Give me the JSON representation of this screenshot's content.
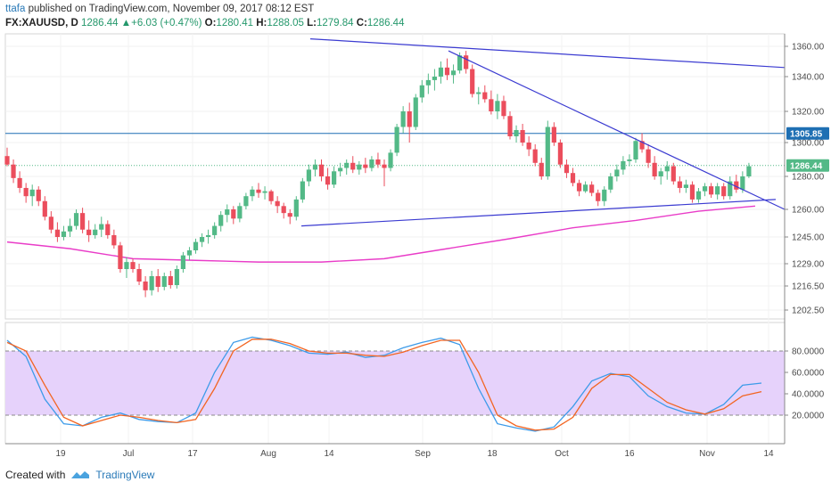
{
  "header": {
    "username": "ttafa",
    "published_text": "published on TradingView.com, November 09, 2017 08:12 EST"
  },
  "ohlc": {
    "symbol": "FX:XAUUSD, D",
    "last": "1286.44",
    "change": "+6.03 (+0.47%)",
    "open_label": "O:",
    "open": "1280.41",
    "high_label": "H:",
    "high": "1288.05",
    "low_label": "L:",
    "low": "1279.84",
    "close_label": "C:",
    "close": "1286.44"
  },
  "footer": {
    "created_with": "Created with",
    "brand": "TradingView"
  },
  "colors": {
    "up": "#53b987",
    "down": "#eb4d5c",
    "trendline": "#3b3bd1",
    "hline": "#1e6fb3",
    "ma": "#e93cc8",
    "stoch_k": "#3d9be9",
    "stoch_d": "#f26522",
    "stoch_band": "#e6d2fb"
  },
  "chart_data": [
    {
      "type": "candlestick",
      "symbol": "FX:XAUUSD",
      "timeframe": "D",
      "x_tick_labels": [
        "19",
        "Jul",
        "17",
        "Aug",
        "14",
        "Sep",
        "18",
        "Oct",
        "16",
        "Nov",
        "14"
      ],
      "y_tick_labels": [
        "1360.00",
        "1340.00",
        "1320.00",
        "1300.00",
        "1280.00",
        "1260.00",
        "1245.00",
        "1229.00",
        "1216.50",
        "1202.50"
      ],
      "price_tags": [
        {
          "label": "1305.85",
          "value": 1305.85,
          "color": "#1e6fb3"
        },
        {
          "label": "1286.44",
          "value": 1286.44,
          "color": "#53b987"
        }
      ],
      "horizontal_lines": [
        1305.85
      ],
      "trendlines": [
        {
          "from": [
            0,
            1366
          ],
          "to": [
            120,
            1346
          ]
        },
        {
          "from": [
            74,
            1357
          ],
          "to": [
            122,
            1260
          ]
        },
        {
          "from": [
            48,
            1251
          ],
          "to": [
            121,
            1266
          ]
        }
      ],
      "moving_average": [
        [
          0,
          1242
        ],
        [
          10,
          1238
        ],
        [
          20,
          1232
        ],
        [
          30,
          1231
        ],
        [
          40,
          1230
        ],
        [
          50,
          1230
        ],
        [
          60,
          1232
        ],
        [
          70,
          1238
        ],
        [
          80,
          1244
        ],
        [
          90,
          1250
        ],
        [
          100,
          1254
        ],
        [
          110,
          1259
        ],
        [
          119,
          1262
        ]
      ],
      "ohlc": [
        [
          1292,
          1297,
          1286,
          1287
        ],
        [
          1287,
          1290,
          1276,
          1279
        ],
        [
          1279,
          1283,
          1270,
          1273
        ],
        [
          1273,
          1276,
          1264,
          1268
        ],
        [
          1268,
          1275,
          1262,
          1272
        ],
        [
          1272,
          1274,
          1262,
          1265
        ],
        [
          1265,
          1268,
          1254,
          1256
        ],
        [
          1256,
          1259,
          1247,
          1249
        ],
        [
          1249,
          1253,
          1242,
          1245
        ],
        [
          1245,
          1251,
          1243,
          1248
        ],
        [
          1248,
          1255,
          1245,
          1251
        ],
        [
          1251,
          1260,
          1249,
          1258
        ],
        [
          1258,
          1261,
          1247,
          1249
        ],
        [
          1249,
          1254,
          1242,
          1246
        ],
        [
          1246,
          1252,
          1244,
          1249
        ],
        [
          1249,
          1256,
          1245,
          1252
        ],
        [
          1252,
          1254,
          1244,
          1246
        ],
        [
          1246,
          1249,
          1238,
          1240
        ],
        [
          1240,
          1242,
          1224,
          1226
        ],
        [
          1226,
          1233,
          1221,
          1230
        ],
        [
          1230,
          1232,
          1224,
          1226
        ],
        [
          1226,
          1229,
          1217,
          1219
        ],
        [
          1219,
          1222,
          1210,
          1214
        ],
        [
          1214,
          1225,
          1211,
          1222
        ],
        [
          1222,
          1226,
          1213,
          1216
        ],
        [
          1216,
          1224,
          1214,
          1222
        ],
        [
          1222,
          1225,
          1215,
          1217
        ],
        [
          1217,
          1228,
          1215,
          1226
        ],
        [
          1226,
          1236,
          1224,
          1234
        ],
        [
          1234,
          1239,
          1231,
          1237
        ],
        [
          1237,
          1244,
          1235,
          1242
        ],
        [
          1242,
          1247,
          1239,
          1245
        ],
        [
          1245,
          1249,
          1241,
          1246
        ],
        [
          1246,
          1253,
          1244,
          1251
        ],
        [
          1251,
          1259,
          1248,
          1257
        ],
        [
          1257,
          1263,
          1253,
          1260
        ],
        [
          1260,
          1262,
          1252,
          1255
        ],
        [
          1255,
          1264,
          1253,
          1262
        ],
        [
          1262,
          1270,
          1260,
          1268
        ],
        [
          1268,
          1274,
          1265,
          1272
        ],
        [
          1272,
          1276,
          1267,
          1270
        ],
        [
          1270,
          1274,
          1266,
          1271
        ],
        [
          1271,
          1272,
          1263,
          1265
        ],
        [
          1265,
          1268,
          1258,
          1262
        ],
        [
          1262,
          1264,
          1255,
          1258
        ],
        [
          1258,
          1260,
          1252,
          1256
        ],
        [
          1256,
          1268,
          1254,
          1266
        ],
        [
          1266,
          1279,
          1264,
          1277
        ],
        [
          1277,
          1287,
          1274,
          1284
        ],
        [
          1284,
          1290,
          1280,
          1287
        ],
        [
          1287,
          1290,
          1277,
          1280
        ],
        [
          1280,
          1285,
          1272,
          1275
        ],
        [
          1275,
          1286,
          1273,
          1283
        ],
        [
          1283,
          1288,
          1280,
          1285
        ],
        [
          1285,
          1290,
          1281,
          1288
        ],
        [
          1288,
          1292,
          1282,
          1284
        ],
        [
          1284,
          1289,
          1281,
          1287
        ],
        [
          1287,
          1291,
          1282,
          1285
        ],
        [
          1285,
          1292,
          1283,
          1290
        ],
        [
          1290,
          1294,
          1285,
          1287
        ],
        [
          1287,
          1290,
          1274,
          1285
        ],
        [
          1285,
          1296,
          1283,
          1294
        ],
        [
          1294,
          1312,
          1292,
          1310
        ],
        [
          1310,
          1323,
          1306,
          1320
        ],
        [
          1320,
          1325,
          1300,
          1310
        ],
        [
          1310,
          1330,
          1308,
          1328
        ],
        [
          1328,
          1338,
          1325,
          1335
        ],
        [
          1335,
          1342,
          1330,
          1338
        ],
        [
          1338,
          1345,
          1332,
          1340
        ],
        [
          1340,
          1350,
          1336,
          1346
        ],
        [
          1346,
          1352,
          1338,
          1341
        ],
        [
          1341,
          1348,
          1336,
          1344
        ],
        [
          1344,
          1356,
          1342,
          1354
        ],
        [
          1354,
          1357,
          1342,
          1345
        ],
        [
          1345,
          1348,
          1328,
          1330
        ],
        [
          1330,
          1334,
          1324,
          1331
        ],
        [
          1331,
          1335,
          1325,
          1327
        ],
        [
          1327,
          1332,
          1318,
          1320
        ],
        [
          1320,
          1330,
          1315,
          1326
        ],
        [
          1326,
          1329,
          1315,
          1317
        ],
        [
          1317,
          1320,
          1302,
          1304
        ],
        [
          1304,
          1311,
          1300,
          1308
        ],
        [
          1308,
          1312,
          1298,
          1300
        ],
        [
          1300,
          1304,
          1292,
          1296
        ],
        [
          1296,
          1299,
          1286,
          1288
        ],
        [
          1288,
          1291,
          1278,
          1280
        ],
        [
          1280,
          1314,
          1278,
          1310
        ],
        [
          1310,
          1313,
          1298,
          1300
        ],
        [
          1300,
          1302,
          1285,
          1287
        ],
        [
          1287,
          1290,
          1279,
          1282
        ],
        [
          1282,
          1285,
          1274,
          1276
        ],
        [
          1276,
          1278,
          1268,
          1271
        ],
        [
          1271,
          1277,
          1270,
          1275
        ],
        [
          1275,
          1277,
          1268,
          1270
        ],
        [
          1270,
          1272,
          1262,
          1265
        ],
        [
          1265,
          1274,
          1262,
          1272
        ],
        [
          1272,
          1282,
          1270,
          1280
        ],
        [
          1280,
          1287,
          1277,
          1284
        ],
        [
          1284,
          1292,
          1281,
          1289
        ],
        [
          1289,
          1293,
          1286,
          1290
        ],
        [
          1290,
          1303,
          1288,
          1301
        ],
        [
          1301,
          1306,
          1294,
          1296
        ],
        [
          1296,
          1299,
          1285,
          1288
        ],
        [
          1288,
          1292,
          1278,
          1280
        ],
        [
          1280,
          1285,
          1275,
          1283
        ],
        [
          1283,
          1289,
          1278,
          1286
        ],
        [
          1286,
          1288,
          1275,
          1277
        ],
        [
          1277,
          1280,
          1270,
          1273
        ],
        [
          1273,
          1278,
          1270,
          1275
        ],
        [
          1275,
          1277,
          1264,
          1266
        ],
        [
          1266,
          1273,
          1264,
          1271
        ],
        [
          1271,
          1276,
          1268,
          1274
        ],
        [
          1274,
          1276,
          1267,
          1269
        ],
        [
          1269,
          1276,
          1266,
          1274
        ],
        [
          1274,
          1276,
          1266,
          1268
        ],
        [
          1268,
          1280,
          1266,
          1277
        ],
        [
          1277,
          1281,
          1270,
          1272
        ],
        [
          1272,
          1283,
          1270,
          1280
        ],
        [
          1280,
          1288,
          1279,
          1286
        ]
      ]
    },
    {
      "type": "line",
      "indicator": "stochastic",
      "y_tick_labels": [
        "80.0000",
        "60.0000",
        "40.0000",
        "20.0000"
      ],
      "ylim": [
        0,
        100
      ],
      "band": [
        20,
        80
      ],
      "series": [
        {
          "key": "k",
          "x": [
            0,
            3,
            6,
            9,
            12,
            15,
            18,
            21,
            24,
            27,
            30,
            33,
            36,
            39,
            42,
            45,
            48,
            51,
            54,
            57,
            60,
            63,
            66,
            69,
            72,
            75,
            78,
            81,
            84,
            87,
            90,
            93,
            96,
            99,
            102,
            105,
            108,
            111,
            114,
            117,
            120
          ],
          "values": [
            90,
            75,
            35,
            12,
            10,
            18,
            22,
            16,
            14,
            13,
            22,
            60,
            88,
            93,
            90,
            85,
            78,
            77,
            79,
            74,
            76,
            83,
            88,
            92,
            86,
            45,
            12,
            8,
            5,
            9,
            28,
            52,
            59,
            56,
            38,
            28,
            22,
            21,
            30,
            48,
            50
          ]
        },
        {
          "key": "d",
          "x": [
            0,
            3,
            6,
            9,
            12,
            15,
            18,
            21,
            24,
            27,
            30,
            33,
            36,
            39,
            42,
            45,
            48,
            51,
            54,
            57,
            60,
            63,
            66,
            69,
            72,
            75,
            78,
            81,
            84,
            87,
            90,
            93,
            96,
            99,
            102,
            105,
            108,
            111,
            114,
            117,
            120
          ],
          "values": [
            88,
            80,
            48,
            18,
            10,
            15,
            20,
            18,
            15,
            13,
            16,
            45,
            80,
            91,
            91,
            87,
            80,
            78,
            78,
            76,
            75,
            79,
            85,
            90,
            90,
            60,
            20,
            10,
            6,
            7,
            18,
            45,
            58,
            58,
            45,
            32,
            25,
            21,
            26,
            38,
            42
          ]
        }
      ]
    }
  ]
}
